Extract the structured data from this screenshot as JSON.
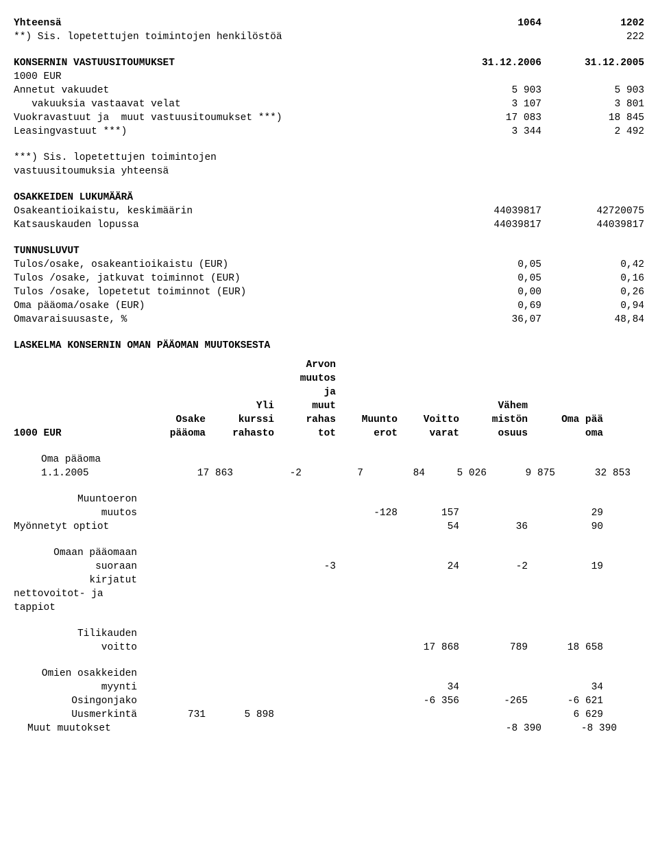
{
  "top": {
    "total_label": "Yhteensä",
    "total_a": "1064",
    "total_b": "1202",
    "note_label": "**) Sis. lopetettujen toimintojen henkilöstöä",
    "note_b": "222"
  },
  "commitments": {
    "heading": "KONSERNIN VASTUUSITOUMUKSET",
    "date_a": "31.12.2006",
    "date_b": "31.12.2005",
    "unit": "1000 EUR",
    "rows": [
      {
        "label": "Annetut vakuudet",
        "a": "5 903",
        "b": "5 903"
      },
      {
        "label": "   vakuuksia vastaavat velat",
        "a": "3 107",
        "b": "3 801"
      },
      {
        "label": "Vuokravastuut ja  muut vastuusitoumukset ***)",
        "a": "17 083",
        "b": "18 845"
      },
      {
        "label": "Leasingvastuut ***)",
        "a": "3 344",
        "b": "2 492"
      }
    ],
    "footnote1": "***) Sis. lopetettujen toimintojen",
    "footnote2": "vastuusitoumuksia yhteensä"
  },
  "shares": {
    "heading": "OSAKKEIDEN LUKUMÄÄRÄ",
    "rows": [
      {
        "label": "Osakeantioikaistu, keskimäärin",
        "a": "44039817",
        "b": "42720075"
      },
      {
        "label": "Katsauskauden lopussa",
        "a": "44039817",
        "b": "44039817"
      }
    ]
  },
  "keyfigs": {
    "heading": "TUNNUSLUVUT",
    "rows": [
      {
        "label": "Tulos/osake, osakeantioikaistu (EUR)",
        "a": "0,05",
        "b": "0,42"
      },
      {
        "label": "Tulos /osake, jatkuvat toiminnot (EUR)",
        "a": "0,05",
        "b": "0,16"
      },
      {
        "label": "Tulos /osake, lopetetut toiminnot (EUR)",
        "a": "0,00",
        "b": "0,26"
      },
      {
        "label": "Oma pääoma/osake (EUR)",
        "a": "0,69",
        "b": "0,94"
      },
      {
        "label": "Omavaraisuusaste, %",
        "a": "36,07",
        "b": "48,84"
      }
    ]
  },
  "equity": {
    "heading": "LASKELMA KONSERNIN OMAN PÄÄOMAN MUUTOKSESTA",
    "header": {
      "rowlabel": "1000 EUR",
      "c1": "Osake\npääoma",
      "c2": "Yli\nkurssi\nrahasto",
      "c3": "Arvon\nmuutos\nja\nmuut\nrahas\ntot",
      "c4": "Muunto\nerot",
      "c5": "Voitto\nvarat",
      "c6": "Vähem\nmistön\nosuus",
      "c7": "Oma pää\noma"
    },
    "rows": [
      {
        "label": "Oma pääoma\n1.1.2005",
        "label_align": "left-indent",
        "c1": "17 863",
        "c2": "-2",
        "c3": "7",
        "c4": "84",
        "c5": "5 026",
        "c6": "9 875",
        "c7": "32 853"
      },
      {
        "spacer": true
      },
      {
        "label": "Muuntoeron\nmuutos",
        "c1": "",
        "c2": "",
        "c3": "",
        "c4": "-128",
        "c5": "157",
        "c6": "",
        "c7": "29"
      },
      {
        "label": "Myönnetyt optiot",
        "label_align": "left",
        "c1": "",
        "c2": "",
        "c3": "",
        "c4": "",
        "c5": "54",
        "c6": "36",
        "c7": "90"
      },
      {
        "spacer": true
      },
      {
        "label": "Omaan pääomaan\nsuoraan\nkirjatut\nnettovoitot- ja\ntappiot",
        "label_align": "mixed",
        "c1": "",
        "c2": "",
        "c3": "-3",
        "c4": "",
        "c5": "24",
        "c6": "-2",
        "c7": "19"
      },
      {
        "spacer": true
      },
      {
        "label": "Tilikauden\nvoitto",
        "c1": "",
        "c2": "",
        "c3": "",
        "c4": "",
        "c5": "17 868",
        "c6": "789",
        "c7": "18 658"
      },
      {
        "spacer": true
      },
      {
        "label": "Omien osakkeiden\nmyynti",
        "c1": "",
        "c2": "",
        "c3": "",
        "c4": "",
        "c5": "34",
        "c6": "",
        "c7": "34"
      },
      {
        "label": "Osingonjako",
        "c1": "",
        "c2": "",
        "c3": "",
        "c4": "",
        "c5": "-6 356",
        "c6": "-265",
        "c7": "-6 621"
      },
      {
        "label": "Uusmerkintä",
        "c1": "731",
        "c2": "5 898",
        "c3": "",
        "c4": "",
        "c5": "",
        "c6": "",
        "c7": "6 629"
      },
      {
        "label": "Muut muutokset",
        "label_align": "left-indent2",
        "c1": "",
        "c2": "",
        "c3": "",
        "c4": "",
        "c5": "",
        "c6": "-8 390",
        "c7": "-8 390"
      }
    ]
  }
}
